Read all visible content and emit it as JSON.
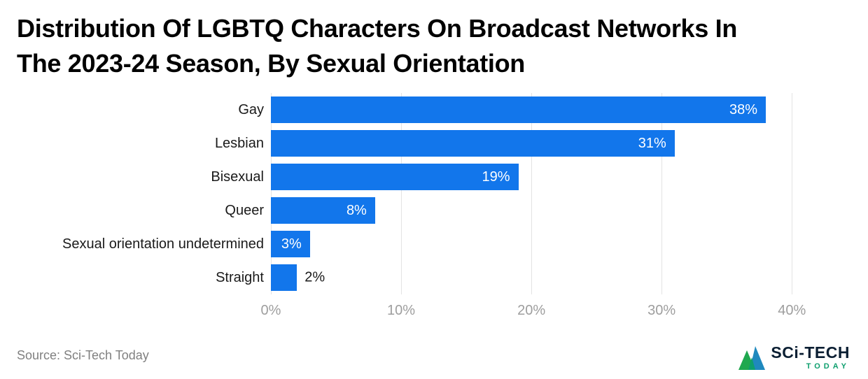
{
  "title": {
    "line1": "Distribution Of LGBTQ Characters On Broadcast Networks In",
    "line2": "The 2023-24 Season, By Sexual Orientation"
  },
  "source": "Source: Sci-Tech Today",
  "logo": {
    "top": "SCi-TECH",
    "bottom": "TODAY"
  },
  "colors": {
    "bar": "#1276eb",
    "grid": "#e3e3e3",
    "tick_text": "#9e9e9e",
    "label_inside": "#ffffff",
    "label_outside": "#1a1a1a",
    "logo_green": "#0e9f6e",
    "logo_blue": "#0c7fb8"
  },
  "chart_data": {
    "type": "bar",
    "orientation": "horizontal",
    "title": "Distribution Of LGBTQ Characters On Broadcast Networks In The 2023-24 Season, By Sexual Orientation",
    "categories": [
      "Gay",
      "Lesbian",
      "Bisexual",
      "Queer",
      "Sexual orientation undetermined",
      "Straight"
    ],
    "values": [
      38,
      31,
      19,
      8,
      3,
      2
    ],
    "value_suffix": "%",
    "xlabel": "",
    "ylabel": "",
    "xlim": [
      0,
      44.5
    ],
    "ticks": [
      0,
      10,
      20,
      30,
      40
    ],
    "tick_labels": [
      "0%",
      "10%",
      "20%",
      "30%",
      "40%"
    ],
    "grid": true,
    "legend": false
  }
}
